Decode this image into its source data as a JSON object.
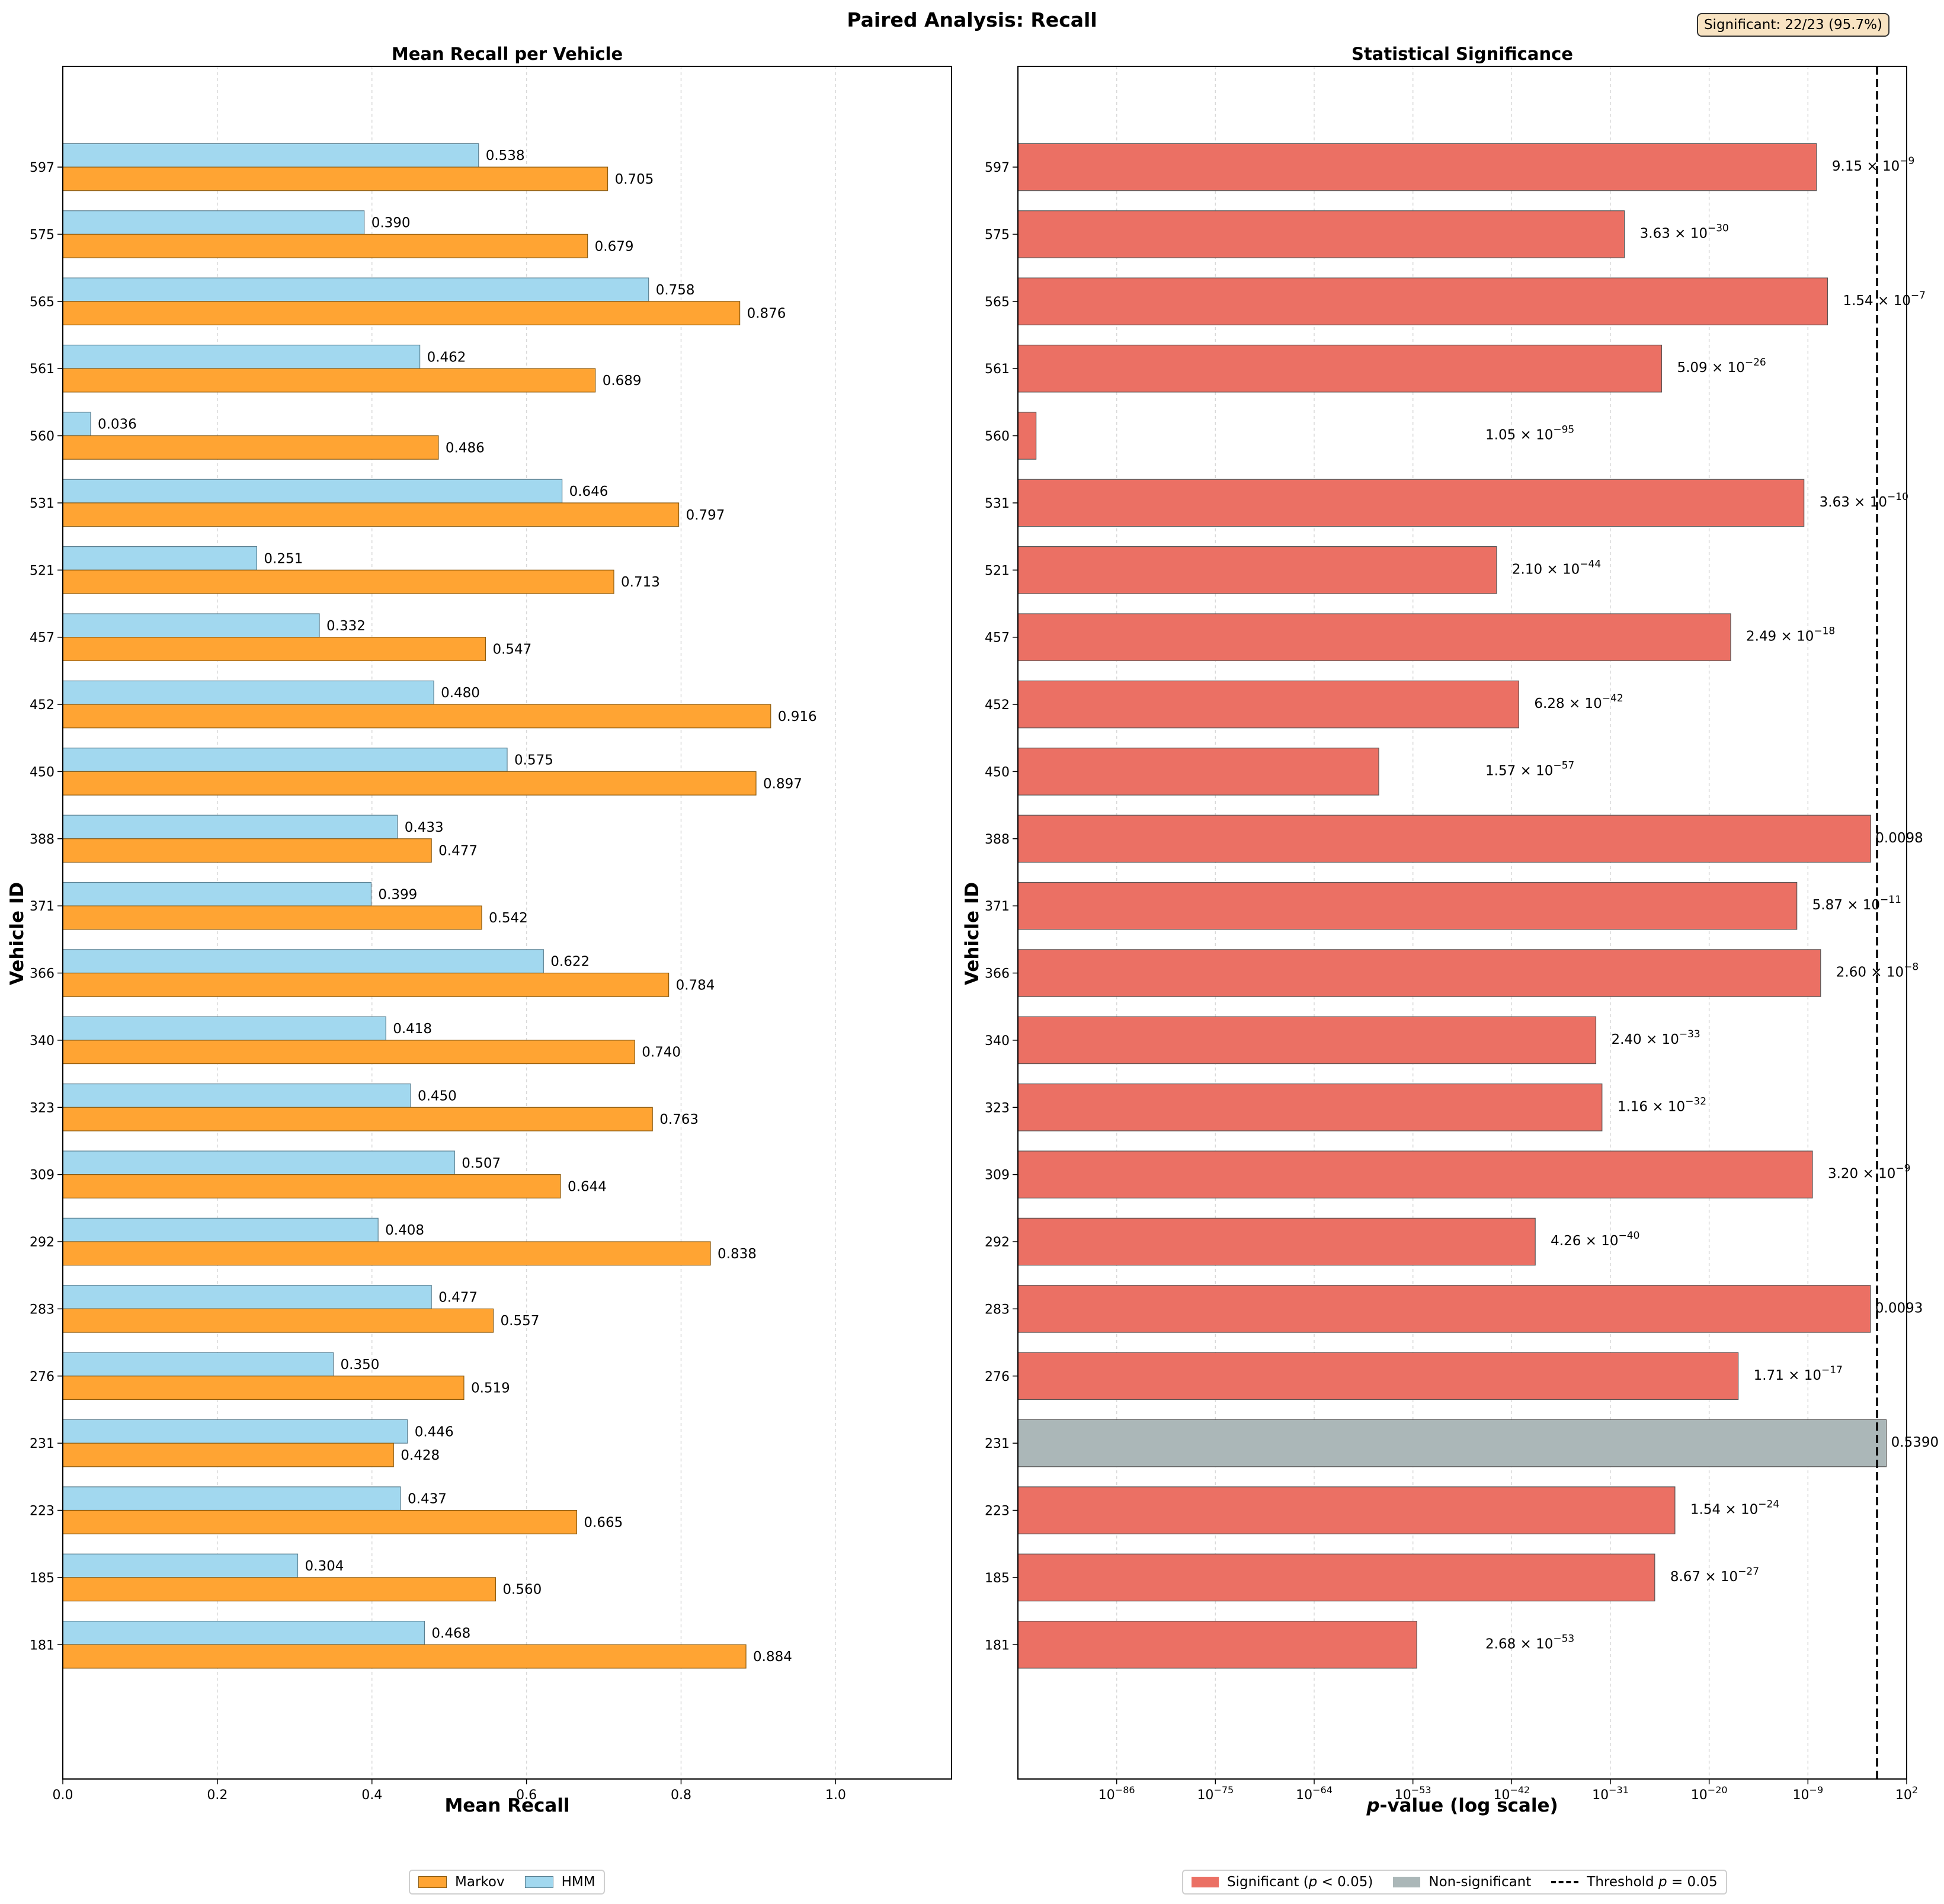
{
  "figure": {
    "title": "Paired Analysis: Recall",
    "badge": "Significant: 22/23 (95.7%)"
  },
  "colors": {
    "markov": "#ffa433",
    "hmm": "#a2d8ef",
    "significant": "#eb7064",
    "nonsignificant": "#abb7b8",
    "threshold": "#000000"
  },
  "chart_data": [
    {
      "type": "bar",
      "orientation": "horizontal",
      "title": "Mean Recall per Vehicle",
      "xlabel": "Mean Recall",
      "ylabel": "Vehicle ID",
      "xlim": [
        0,
        1.15
      ],
      "xticks": [
        "0.0",
        "0.2",
        "0.4",
        "0.6",
        "0.8",
        "1.0"
      ],
      "grid": "x",
      "categories": [
        "597",
        "575",
        "565",
        "561",
        "560",
        "531",
        "521",
        "457",
        "452",
        "450",
        "388",
        "371",
        "366",
        "340",
        "323",
        "309",
        "292",
        "283",
        "276",
        "231",
        "223",
        "185",
        "181"
      ],
      "series": [
        {
          "name": "HMM",
          "values": [
            0.538,
            0.39,
            0.758,
            0.462,
            0.036,
            0.646,
            0.251,
            0.332,
            0.48,
            0.575,
            0.433,
            0.399,
            0.622,
            0.418,
            0.45,
            0.507,
            0.408,
            0.477,
            0.35,
            0.446,
            0.437,
            0.304,
            0.468
          ]
        },
        {
          "name": "Markov",
          "values": [
            0.705,
            0.679,
            0.876,
            0.689,
            0.486,
            0.797,
            0.713,
            0.547,
            0.916,
            0.897,
            0.477,
            0.542,
            0.784,
            0.74,
            0.763,
            0.644,
            0.838,
            0.557,
            0.519,
            0.428,
            0.665,
            0.56,
            0.884
          ]
        }
      ],
      "legend": {
        "items": [
          "Markov",
          "HMM"
        ],
        "position": "bottom-center"
      }
    },
    {
      "type": "bar",
      "orientation": "horizontal",
      "title": "Statistical Significance",
      "xlabel_italic": "p",
      "xlabel_rest": "-value (log scale)",
      "ylabel": "Vehicle ID",
      "x_scale": "log",
      "xlim_log10": [
        -97,
        2
      ],
      "xticks_log10": [
        -86,
        -75,
        -64,
        -53,
        -42,
        -31,
        -20,
        -9,
        2
      ],
      "tick_base": "10",
      "tick_top_label": "10",
      "tick_top_exp": "2",
      "threshold": 0.05,
      "categories": [
        "597",
        "575",
        "565",
        "561",
        "560",
        "531",
        "521",
        "457",
        "452",
        "450",
        "388",
        "371",
        "366",
        "340",
        "323",
        "309",
        "292",
        "283",
        "276",
        "231",
        "223",
        "185",
        "181"
      ],
      "log10_pvalues": [
        -8.039,
        -29.44,
        -6.812,
        -25.293,
        -94.979,
        -9.44,
        -43.678,
        -17.604,
        -41.202,
        -56.804,
        -2.009,
        -10.231,
        -7.585,
        -32.62,
        -31.936,
        -8.495,
        -39.371,
        -2.032,
        -16.767,
        -0.268,
        -23.812,
        -26.062,
        -52.572
      ],
      "significant": [
        true,
        true,
        true,
        true,
        true,
        true,
        true,
        true,
        true,
        true,
        true,
        true,
        true,
        true,
        true,
        true,
        true,
        true,
        true,
        false,
        true,
        true,
        true
      ],
      "labels": [
        {
          "mant": "9.15 × 10",
          "exp": "−9"
        },
        {
          "mant": "3.63 × 10",
          "exp": "−30"
        },
        {
          "mant": "1.54 × 10",
          "exp": "−7"
        },
        {
          "mant": "5.09 × 10",
          "exp": "−26"
        },
        {
          "mant": "1.05 × 10",
          "exp": "−95"
        },
        {
          "mant": "3.63 × 10",
          "exp": "−10"
        },
        {
          "mant": "2.10 × 10",
          "exp": "−44"
        },
        {
          "mant": "2.49 × 10",
          "exp": "−18"
        },
        {
          "mant": "6.28 × 10",
          "exp": "−42"
        },
        {
          "mant": "1.57 × 10",
          "exp": "−57"
        },
        {
          "mant": "0.0098",
          "exp": ""
        },
        {
          "mant": "5.87 × 10",
          "exp": "−11"
        },
        {
          "mant": "2.60 × 10",
          "exp": "−8"
        },
        {
          "mant": "2.40 × 10",
          "exp": "−33"
        },
        {
          "mant": "1.16 × 10",
          "exp": "−32"
        },
        {
          "mant": "3.20 × 10",
          "exp": "−9"
        },
        {
          "mant": "4.26 × 10",
          "exp": "−40"
        },
        {
          "mant": "0.0093",
          "exp": ""
        },
        {
          "mant": "1.71 × 10",
          "exp": "−17"
        },
        {
          "mant": "0.5390",
          "exp": ""
        },
        {
          "mant": "1.54 × 10",
          "exp": "−24"
        },
        {
          "mant": "8.67 × 10",
          "exp": "−27"
        },
        {
          "mant": "2.68 × 10",
          "exp": "−53"
        }
      ],
      "legend": {
        "sig_prefix": "Significant (",
        "sig_p": "p",
        "sig_suffix": " < 0.05)",
        "nonsig": "Non-significant",
        "thr_prefix": "Threshold ",
        "thr_p": "p",
        "thr_suffix": " = 0.05",
        "position": "bottom-center"
      }
    }
  ]
}
